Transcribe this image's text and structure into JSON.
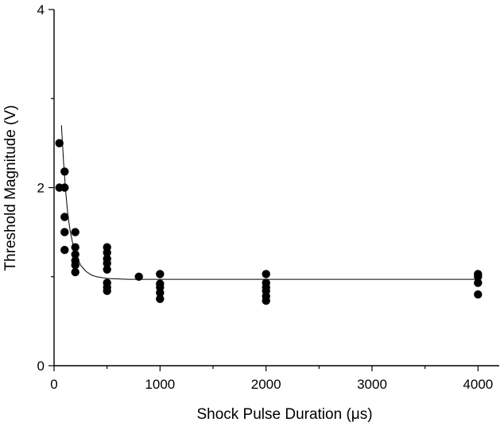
{
  "chart_data": {
    "type": "scatter",
    "title": "",
    "xlabel": "Shock Pulse Duration (μs)",
    "ylabel": "Threshold Magnitude (V)",
    "xlim": [
      0,
      4200
    ],
    "ylim": [
      0,
      4
    ],
    "x_ticks": [
      0,
      1000,
      2000,
      3000,
      4000
    ],
    "y_ticks": [
      0,
      2,
      4
    ],
    "x_minor_ticks": [
      500,
      1500,
      2500,
      3500
    ],
    "y_minor_ticks": [
      1,
      3
    ],
    "grid": false,
    "series": [
      {
        "kind": "points",
        "marker": "filled-circle",
        "color": "#000000",
        "points": [
          [
            50,
            2.5
          ],
          [
            50,
            2.0
          ],
          [
            100,
            2.18
          ],
          [
            100,
            2.0
          ],
          [
            100,
            1.67
          ],
          [
            100,
            1.5
          ],
          [
            100,
            1.3
          ],
          [
            200,
            1.5
          ],
          [
            200,
            1.33
          ],
          [
            200,
            1.25
          ],
          [
            200,
            1.18
          ],
          [
            200,
            1.13
          ],
          [
            200,
            1.05
          ],
          [
            500,
            1.33
          ],
          [
            500,
            1.27
          ],
          [
            500,
            1.2
          ],
          [
            500,
            1.15
          ],
          [
            500,
            1.08
          ],
          [
            500,
            0.93
          ],
          [
            500,
            0.88
          ],
          [
            500,
            0.84
          ],
          [
            800,
            1.0
          ],
          [
            1000,
            1.03
          ],
          [
            1000,
            0.92
          ],
          [
            1000,
            0.88
          ],
          [
            1000,
            0.82
          ],
          [
            1000,
            0.75
          ],
          [
            2000,
            1.03
          ],
          [
            2000,
            0.93
          ],
          [
            2000,
            0.88
          ],
          [
            2000,
            0.84
          ],
          [
            2000,
            0.78
          ],
          [
            2000,
            0.73
          ],
          [
            4000,
            1.03
          ],
          [
            4000,
            1.0
          ],
          [
            4000,
            0.93
          ],
          [
            4000,
            0.8
          ]
        ]
      },
      {
        "kind": "fit-curve",
        "color": "#000000",
        "points": [
          [
            70,
            2.7
          ],
          [
            90,
            2.28
          ],
          [
            110,
            1.95
          ],
          [
            130,
            1.7
          ],
          [
            150,
            1.53
          ],
          [
            175,
            1.38
          ],
          [
            200,
            1.27
          ],
          [
            250,
            1.13
          ],
          [
            300,
            1.06
          ],
          [
            350,
            1.02
          ],
          [
            400,
            1.0
          ],
          [
            500,
            0.98
          ],
          [
            700,
            0.97
          ],
          [
            1000,
            0.97
          ],
          [
            2000,
            0.97
          ],
          [
            3000,
            0.97
          ],
          [
            4000,
            0.97
          ]
        ]
      }
    ]
  }
}
